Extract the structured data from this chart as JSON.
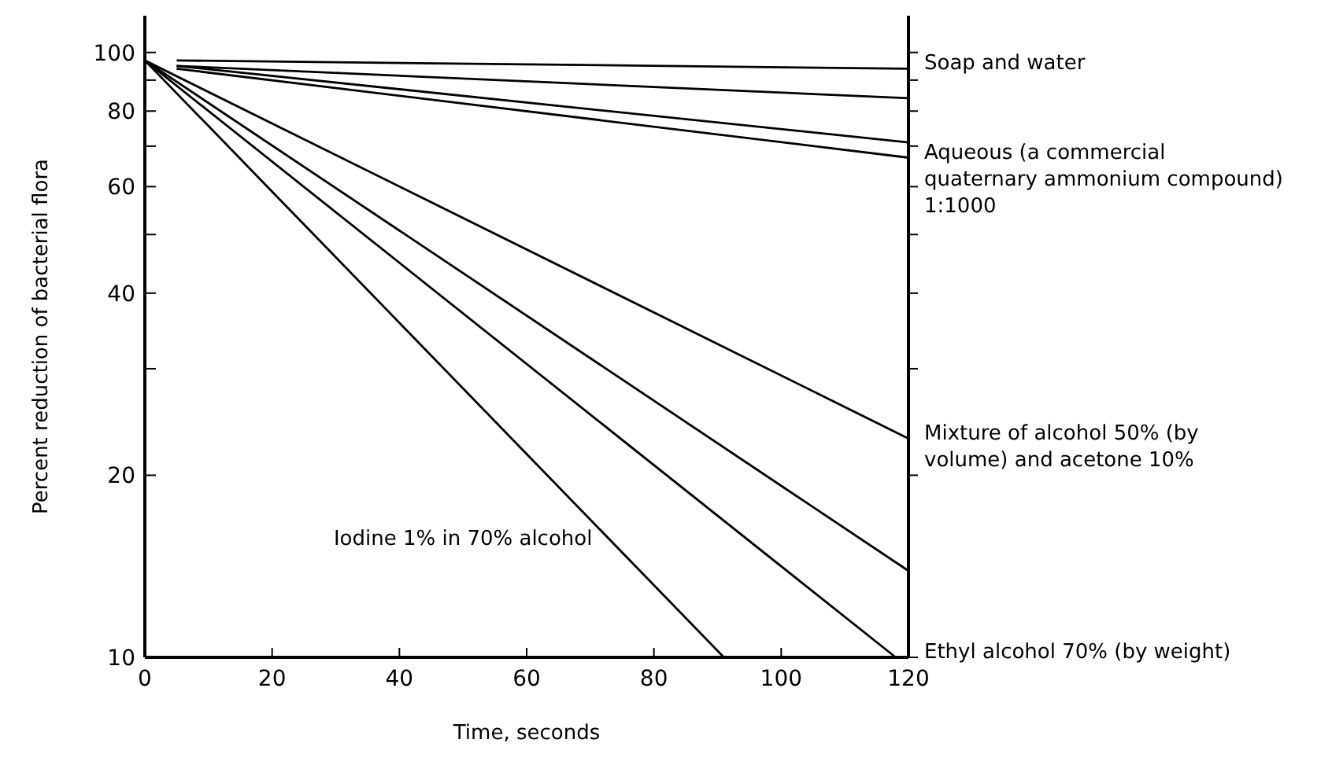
{
  "chart_data": {
    "type": "line",
    "xlabel": "Time, seconds",
    "ylabel": "Percent reduction of bacterial flora",
    "log": true,
    "grid": false,
    "legend": "right",
    "marker": "none",
    "line_style": "solid",
    "xlim": [
      0,
      120
    ],
    "xticks": [
      0,
      20,
      40,
      60,
      80,
      100,
      120
    ],
    "ylim": [
      10,
      115
    ],
    "yticks": [
      10,
      20,
      {
        "value": 30,
        "label": null
      },
      40,
      {
        "value": 50,
        "label": null
      },
      60,
      {
        "value": 70,
        "label": null
      },
      80,
      {
        "value": 90,
        "label": null
      },
      100
    ],
    "series": [
      {
        "name": "Soap and water",
        "color": "#000000",
        "x": [
          5,
          120
        ],
        "values": [
          97,
          94
        ]
      },
      {
        "color": "#000000",
        "x": [
          5,
          120
        ],
        "values": [
          95,
          84
        ]
      },
      {
        "color": "#000000",
        "x": [
          5,
          120
        ],
        "values": [
          95,
          71
        ]
      },
      {
        "name": "Aqueous (a commercial quaternary ammonium compound) 1:1000",
        "color": "#000000",
        "x": [
          5,
          120
        ],
        "values": [
          94,
          67
        ]
      },
      {
        "name": "Mixture of alcohol 50% (by volume) and acetone 10%",
        "color": "#000000",
        "x": [
          0,
          120
        ],
        "values": [
          97,
          23
        ]
      },
      {
        "color": "#000000",
        "x": [
          0,
          120
        ],
        "values": [
          97,
          13.9
        ]
      },
      {
        "name": "Ethyl alcohol 70% (by weight)",
        "color": "#000000",
        "x": [
          0,
          118
        ],
        "values": [
          97,
          10
        ]
      },
      {
        "name": "Iodine 1% in 70% alcohol",
        "color": "#000000",
        "x": [
          0,
          91
        ],
        "values": [
          97,
          10
        ]
      }
    ]
  }
}
